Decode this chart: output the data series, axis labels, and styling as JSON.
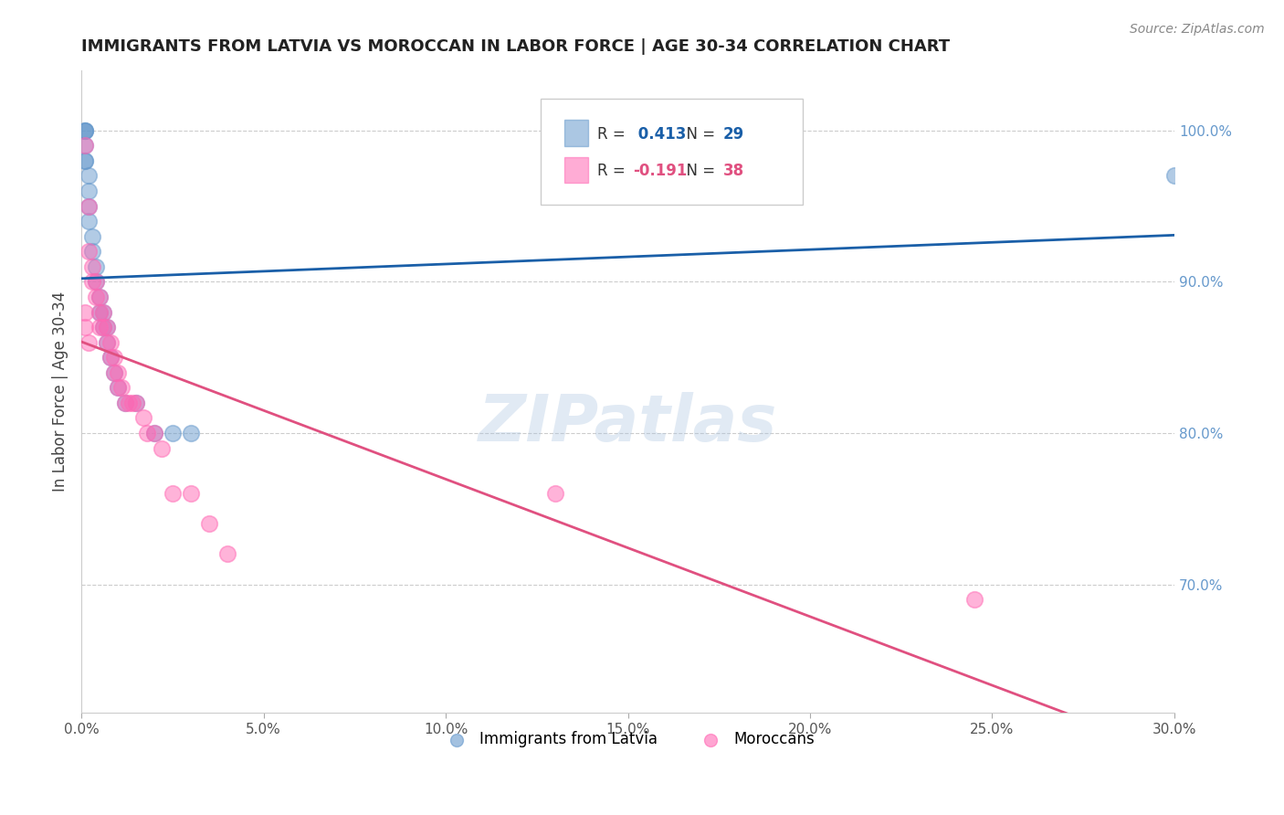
{
  "title": "IMMIGRANTS FROM LATVIA VS MOROCCAN IN LABOR FORCE | AGE 30-34 CORRELATION CHART",
  "source": "Source: ZipAtlas.com",
  "ylabel": "In Labor Force | Age 30-34",
  "xlim": [
    0.0,
    0.3
  ],
  "ylim": [
    0.615,
    1.04
  ],
  "right_yticks": [
    0.7,
    0.8,
    0.9,
    1.0
  ],
  "right_yticklabels": [
    "70.0%",
    "80.0%",
    "90.0%",
    "100.0%"
  ],
  "xticks": [
    0.0,
    0.05,
    0.1,
    0.15,
    0.2,
    0.25,
    0.3
  ],
  "xticklabels": [
    "0.0%",
    "5.0%",
    "10.0%",
    "15.0%",
    "20.0%",
    "25.0%",
    "30.0%"
  ],
  "grid_yticks": [
    0.7,
    0.8,
    0.9,
    1.0
  ],
  "latvia_color": "#6699CC",
  "morocco_color": "#FF69B4",
  "latvia_line_color": "#1a5fa8",
  "morocco_line_color": "#e05080",
  "latvia_R": 0.413,
  "latvia_N": 29,
  "morocco_R": -0.191,
  "morocco_N": 38,
  "watermark": "ZIPatlas",
  "watermark_color": "#aac4e0",
  "background_color": "#ffffff",
  "latvia_x": [
    0.001,
    0.001,
    0.001,
    0.001,
    0.001,
    0.001,
    0.002,
    0.002,
    0.002,
    0.002,
    0.003,
    0.003,
    0.004,
    0.004,
    0.005,
    0.005,
    0.006,
    0.006,
    0.007,
    0.007,
    0.008,
    0.009,
    0.01,
    0.012,
    0.015,
    0.02,
    0.025,
    0.03,
    0.3
  ],
  "latvia_y": [
    1.0,
    1.0,
    1.0,
    0.99,
    0.98,
    0.98,
    0.97,
    0.96,
    0.95,
    0.94,
    0.93,
    0.92,
    0.91,
    0.9,
    0.89,
    0.88,
    0.88,
    0.87,
    0.87,
    0.86,
    0.85,
    0.84,
    0.83,
    0.82,
    0.82,
    0.8,
    0.8,
    0.8,
    0.97
  ],
  "morocco_x": [
    0.001,
    0.001,
    0.001,
    0.002,
    0.002,
    0.002,
    0.003,
    0.003,
    0.004,
    0.004,
    0.005,
    0.005,
    0.005,
    0.006,
    0.006,
    0.007,
    0.007,
    0.008,
    0.008,
    0.009,
    0.009,
    0.01,
    0.01,
    0.011,
    0.012,
    0.013,
    0.014,
    0.015,
    0.017,
    0.018,
    0.02,
    0.022,
    0.025,
    0.03,
    0.035,
    0.04,
    0.13,
    0.245
  ],
  "morocco_y": [
    0.99,
    0.88,
    0.87,
    0.95,
    0.92,
    0.86,
    0.91,
    0.9,
    0.9,
    0.89,
    0.89,
    0.88,
    0.87,
    0.88,
    0.87,
    0.87,
    0.86,
    0.86,
    0.85,
    0.85,
    0.84,
    0.84,
    0.83,
    0.83,
    0.82,
    0.82,
    0.82,
    0.82,
    0.81,
    0.8,
    0.8,
    0.79,
    0.76,
    0.76,
    0.74,
    0.72,
    0.76,
    0.69
  ]
}
